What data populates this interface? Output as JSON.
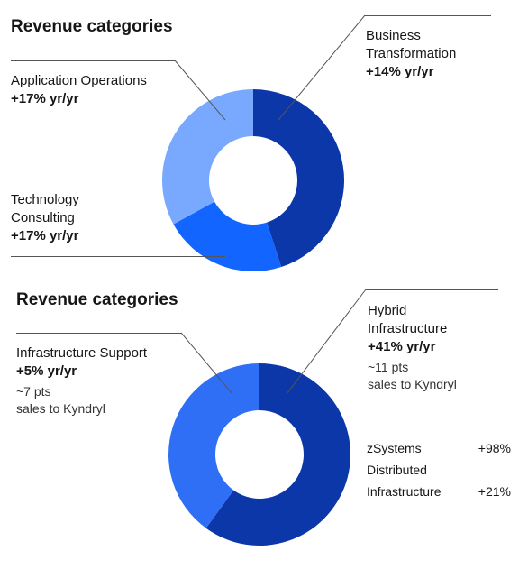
{
  "chart_data": [
    {
      "type": "pie",
      "title": "Revenue categories",
      "donut": true,
      "slices": [
        {
          "name": "Business\nTransformation",
          "growth": "+14% yr/yr",
          "share": 0.45,
          "color": "#0b37a8"
        },
        {
          "name": "Technology\nConsulting",
          "growth": "+17% yr/yr",
          "share": 0.22,
          "color": "#1265ff"
        },
        {
          "name": "Application Operations",
          "growth": "+17% yr/yr",
          "share": 0.33,
          "color": "#78a9ff"
        }
      ]
    },
    {
      "type": "pie",
      "title": "Revenue categories",
      "donut": true,
      "slices": [
        {
          "name": "Hybrid\nInfrastructure",
          "growth": "+41% yr/yr",
          "note": "~11 pts\nsales to Kyndryl",
          "share": 0.6,
          "color": "#0b37a8"
        },
        {
          "name": "Infrastructure Support",
          "growth": "+5% yr/yr",
          "note": "~7 pts\nsales to Kyndryl",
          "share": 0.4,
          "color": "#2f6ff5"
        }
      ],
      "breakdown": [
        {
          "name": "zSystems",
          "value": "+98%"
        },
        {
          "name": "Distributed",
          "value": ""
        },
        {
          "name": "Infrastructure",
          "value": "+21%"
        }
      ]
    }
  ]
}
